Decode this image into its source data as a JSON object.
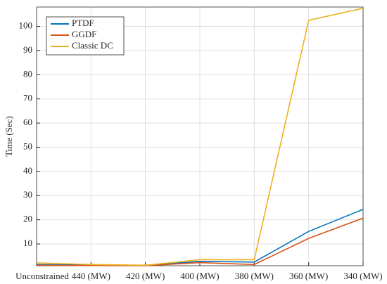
{
  "chart_data": {
    "type": "line",
    "y_label": "Time (Sec)",
    "categories": [
      "Unconstrained",
      "440 (MW)",
      "420 (MW)",
      "400 (MW)",
      "380 (MW)",
      "360 (MW)",
      "340 (MW)"
    ],
    "series": [
      {
        "name": "PTDF",
        "color": "#0072bd",
        "values": [
          1.5,
          1.3,
          1.1,
          2.8,
          2.5,
          15.2,
          24.3
        ]
      },
      {
        "name": "GGDF",
        "color": "#d95319",
        "values": [
          1.2,
          1.1,
          1.0,
          2.3,
          1.5,
          12.3,
          20.7
        ]
      },
      {
        "name": "Classic DC",
        "color": "#edb120",
        "values": [
          2.2,
          1.5,
          1.2,
          3.5,
          3.5,
          102.5,
          107.5
        ]
      }
    ],
    "ylim": [
      1,
      108
    ],
    "yticks": [
      10,
      20,
      30,
      40,
      50,
      60,
      70,
      80,
      90,
      100
    ],
    "grid": true,
    "legend": "top-left"
  }
}
